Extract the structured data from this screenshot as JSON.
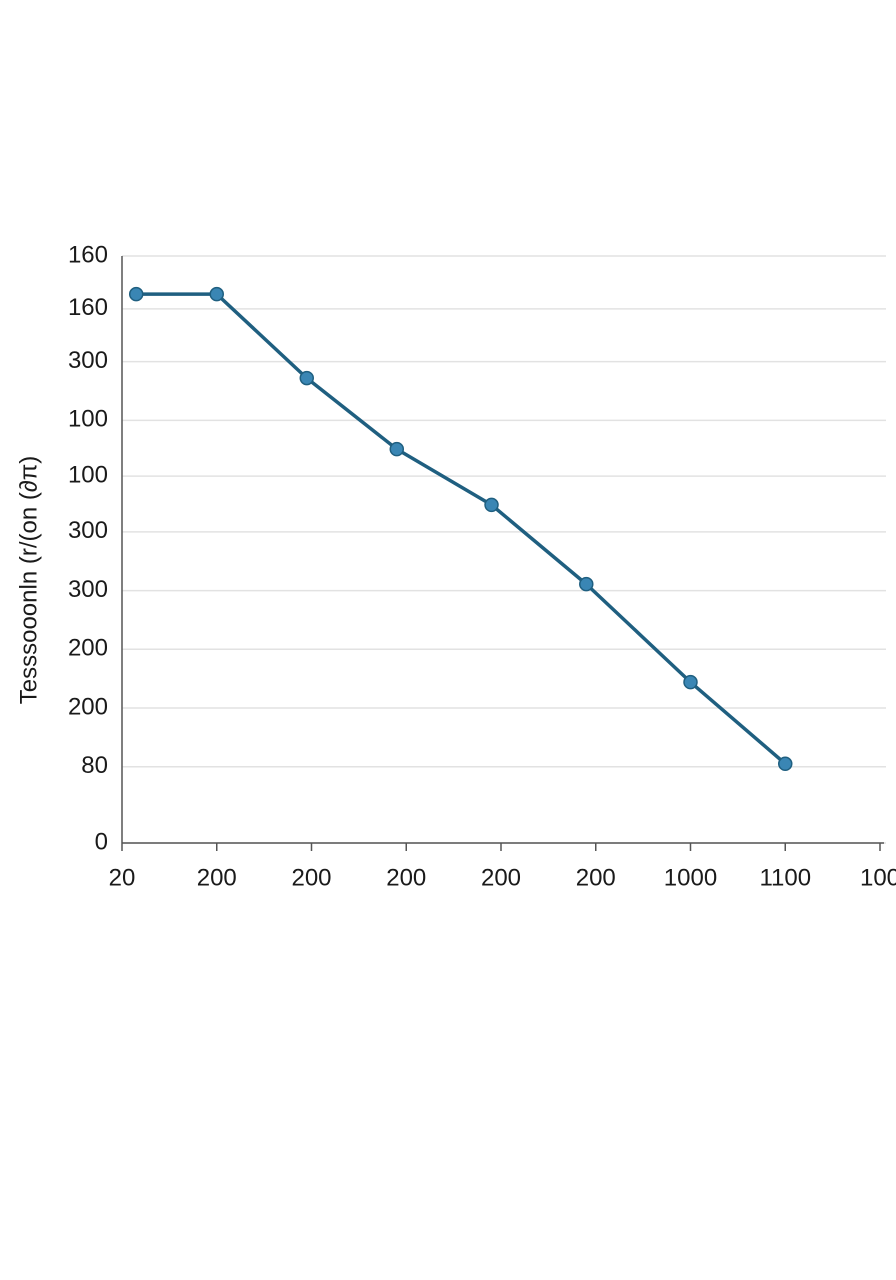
{
  "chart_data": {
    "type": "line",
    "ylabel": "Tesssooonln (r/(on (∂π)",
    "xlim": [
      0,
      8
    ],
    "xticks": [
      {
        "value": 0,
        "label": "20"
      },
      {
        "value": 1,
        "label": "200"
      },
      {
        "value": 2,
        "label": "200"
      },
      {
        "value": 3,
        "label": "200"
      },
      {
        "value": 4,
        "label": "200"
      },
      {
        "value": 5,
        "label": "200"
      },
      {
        "value": 6,
        "label": "1000"
      },
      {
        "value": 7,
        "label": "1100"
      },
      {
        "value": 8,
        "label": "100"
      }
    ],
    "ylim": [
      0,
      100
    ],
    "yticks": [
      {
        "value": 100,
        "label": "160"
      },
      {
        "value": 91,
        "label": "160"
      },
      {
        "value": 82,
        "label": "300"
      },
      {
        "value": 72,
        "label": "100"
      },
      {
        "value": 62.5,
        "label": "100"
      },
      {
        "value": 53,
        "label": "300"
      },
      {
        "value": 43,
        "label": "300"
      },
      {
        "value": 33,
        "label": "200"
      },
      {
        "value": 23,
        "label": "200"
      },
      {
        "value": 13,
        "label": "80"
      },
      0
    ],
    "grid": true,
    "series": [
      {
        "color": "#1f5f80",
        "x": [
          0.15,
          1,
          1.95,
          2.9,
          3.9,
          4.9,
          6,
          7
        ],
        "values": [
          93.5,
          93.5,
          79.2,
          67.1,
          57.6,
          44.1,
          27.4,
          13.5
        ]
      }
    ]
  }
}
